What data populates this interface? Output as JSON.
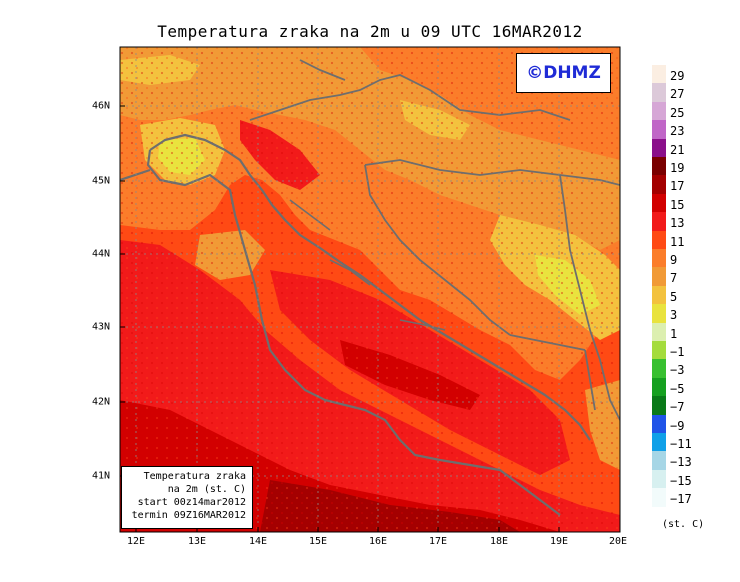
{
  "title": "Temperatura zraka na 2m u 09 UTC 16MAR2012",
  "copyright": "©DHMZ",
  "info_box": {
    "line1": "Temperatura zraka",
    "line2": "na 2m (st. C)",
    "line3": "start 00z14mar2012",
    "line4": "termin 09Z16MAR2012"
  },
  "x_ticks": [
    "12E",
    "13E",
    "14E",
    "15E",
    "16E",
    "17E",
    "18E",
    "19E",
    "20E"
  ],
  "y_ticks": [
    "46N",
    "45N",
    "44N",
    "43N",
    "42N",
    "41N"
  ],
  "colorbar": {
    "units": "(st. C)",
    "levels": [
      {
        "label": "29",
        "color": "#fbeee2"
      },
      {
        "label": "27",
        "color": "#dcc9d9"
      },
      {
        "label": "25",
        "color": "#d6a6d6"
      },
      {
        "label": "23",
        "color": "#c066c7"
      },
      {
        "label": "21",
        "color": "#8a0f8a"
      },
      {
        "label": "19",
        "color": "#7a0000"
      },
      {
        "label": "17",
        "color": "#a40000"
      },
      {
        "label": "15",
        "color": "#d20000"
      },
      {
        "label": "13",
        "color": "#f21a1a"
      },
      {
        "label": "11",
        "color": "#ff4a14"
      },
      {
        "label": "9",
        "color": "#fb7d2a"
      },
      {
        "label": "7",
        "color": "#f19a36"
      },
      {
        "label": "5",
        "color": "#f3c23e"
      },
      {
        "label": "3",
        "color": "#e9e33e"
      },
      {
        "label": "1",
        "color": "#dcefb0"
      },
      {
        "label": "−1",
        "color": "#a4dc3c"
      },
      {
        "label": "−3",
        "color": "#38c030"
      },
      {
        "label": "−5",
        "color": "#16a020"
      },
      {
        "label": "−7",
        "color": "#0a7a18"
      },
      {
        "label": "−9",
        "color": "#2054e8"
      },
      {
        "label": "−11",
        "color": "#10a0e8"
      },
      {
        "label": "−13",
        "color": "#a6d6e6"
      },
      {
        "label": "−15",
        "color": "#d7f0f0"
      },
      {
        "label": "−17",
        "color": "#f2fbfb"
      }
    ]
  }
}
